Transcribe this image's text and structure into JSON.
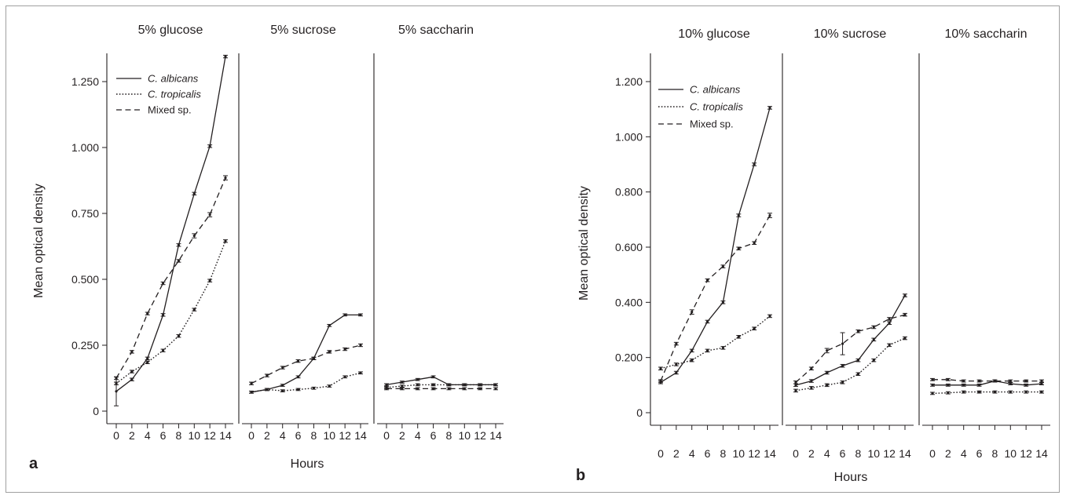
{
  "chart_data": [
    {
      "panel": "a",
      "type": "line",
      "ylabel": "Mean optical density",
      "xlabel": "Hours",
      "ylim": [
        0,
        1.35
      ],
      "yticks": [
        0,
        0.25,
        0.5,
        0.75,
        1.0,
        1.25
      ],
      "ytick_labels": [
        "0",
        "0.250",
        "0.500",
        "0.750",
        "1.000",
        "1.250"
      ],
      "x": [
        0,
        2,
        4,
        6,
        8,
        10,
        12,
        14
      ],
      "xtick_labels": [
        "0",
        "2",
        "4",
        "6",
        "8",
        "10",
        "12",
        "14"
      ],
      "legend": [
        {
          "name": "C. albicans",
          "style": "solid"
        },
        {
          "name": "C. tropicalis",
          "style": "dotted"
        },
        {
          "name": "Mixed sp.",
          "style": "dashed"
        }
      ],
      "subpanels": [
        {
          "title": "5% glucose",
          "series": [
            {
              "name": "C. albicans",
              "values": [
                0.075,
                0.12,
                0.2,
                0.365,
                0.63,
                0.825,
                1.005,
                1.345
              ],
              "errors": [
                0.055,
                0.005,
                0.005,
                0.005,
                0.005,
                0.005,
                0.005,
                0.005
              ]
            },
            {
              "name": "C. tropicalis",
              "values": [
                0.105,
                0.15,
                0.185,
                0.23,
                0.285,
                0.385,
                0.495,
                0.645
              ],
              "errors": [
                0.005,
                0.005,
                0.005,
                0.005,
                0.005,
                0.005,
                0.005,
                0.005
              ]
            },
            {
              "name": "Mixed sp.",
              "values": [
                0.125,
                0.225,
                0.37,
                0.485,
                0.57,
                0.665,
                0.745,
                0.885
              ],
              "errors": [
                0.005,
                0.005,
                0.005,
                0.005,
                0.005,
                0.008,
                0.008,
                0.008
              ]
            }
          ]
        },
        {
          "title": "5% sucrose",
          "series": [
            {
              "name": "C. albicans",
              "values": [
                0.072,
                0.082,
                0.098,
                0.13,
                0.2,
                0.325,
                0.365,
                0.365
              ],
              "errors": [
                0.004,
                0.004,
                0.004,
                0.004,
                0.004,
                0.004,
                0.004,
                0.004
              ]
            },
            {
              "name": "C. tropicalis",
              "values": [
                0.072,
                0.082,
                0.077,
                0.082,
                0.087,
                0.095,
                0.13,
                0.145
              ],
              "errors": [
                0.004,
                0.004,
                0.004,
                0.004,
                0.004,
                0.004,
                0.004,
                0.004
              ]
            },
            {
              "name": "Mixed sp.",
              "values": [
                0.105,
                0.135,
                0.165,
                0.19,
                0.2,
                0.225,
                0.235,
                0.25
              ],
              "errors": [
                0.005,
                0.005,
                0.005,
                0.005,
                0.005,
                0.005,
                0.005,
                0.005
              ]
            }
          ]
        },
        {
          "title": "5% saccharin",
          "series": [
            {
              "name": "C. albicans",
              "values": [
                0.1,
                0.11,
                0.12,
                0.13,
                0.1,
                0.1,
                0.1,
                0.1
              ],
              "errors": [
                0.004,
                0.004,
                0.004,
                0.004,
                0.004,
                0.004,
                0.004,
                0.004
              ]
            },
            {
              "name": "C. tropicalis",
              "values": [
                0.09,
                0.095,
                0.1,
                0.1,
                0.1,
                0.1,
                0.1,
                0.1
              ],
              "errors": [
                0.004,
                0.004,
                0.004,
                0.004,
                0.004,
                0.004,
                0.004,
                0.004
              ]
            },
            {
              "name": "Mixed sp.",
              "values": [
                0.085,
                0.085,
                0.085,
                0.085,
                0.085,
                0.085,
                0.085,
                0.085
              ],
              "errors": [
                0.004,
                0.004,
                0.004,
                0.004,
                0.004,
                0.004,
                0.004,
                0.004
              ]
            }
          ]
        }
      ]
    },
    {
      "panel": "b",
      "type": "line",
      "ylabel": "Mean optical density",
      "xlabel": "Hours",
      "ylim": [
        0,
        1.2
      ],
      "yticks": [
        0,
        0.2,
        0.4,
        0.6,
        0.8,
        1.0,
        1.2
      ],
      "ytick_labels": [
        "0",
        "0.200",
        "0.400",
        "0.600",
        "0.800",
        "1.000",
        "1.200"
      ],
      "x": [
        0,
        2,
        4,
        6,
        8,
        10,
        12,
        14
      ],
      "xtick_labels": [
        "0",
        "2",
        "4",
        "6",
        "8",
        "10",
        "12",
        "14"
      ],
      "legend": [
        {
          "name": "C. albicans",
          "style": "solid"
        },
        {
          "name": "C. tropicalis",
          "style": "dotted"
        },
        {
          "name": "Mixed sp.",
          "style": "dashed"
        }
      ],
      "subpanels": [
        {
          "title": "10% glucose",
          "series": [
            {
              "name": "C. albicans",
              "values": [
                0.11,
                0.145,
                0.225,
                0.33,
                0.4,
                0.715,
                0.9,
                1.105
              ],
              "errors": [
                0.005,
                0.005,
                0.005,
                0.005,
                0.005,
                0.005,
                0.005,
                0.005
              ]
            },
            {
              "name": "C. tropicalis",
              "values": [
                0.16,
                0.175,
                0.19,
                0.225,
                0.235,
                0.275,
                0.305,
                0.35
              ],
              "errors": [
                0.005,
                0.005,
                0.005,
                0.005,
                0.005,
                0.005,
                0.005,
                0.005
              ]
            },
            {
              "name": "Mixed sp.",
              "values": [
                0.115,
                0.25,
                0.365,
                0.48,
                0.53,
                0.595,
                0.615,
                0.715
              ],
              "errors": [
                0.005,
                0.005,
                0.008,
                0.005,
                0.005,
                0.005,
                0.005,
                0.008
              ]
            }
          ]
        },
        {
          "title": "10% sucrose",
          "series": [
            {
              "name": "C. albicans",
              "values": [
                0.1,
                0.115,
                0.145,
                0.17,
                0.19,
                0.265,
                0.325,
                0.425
              ],
              "errors": [
                0.005,
                0.005,
                0.005,
                0.005,
                0.005,
                0.005,
                0.005,
                0.005
              ]
            },
            {
              "name": "C. tropicalis",
              "values": [
                0.08,
                0.09,
                0.1,
                0.11,
                0.14,
                0.19,
                0.245,
                0.27
              ],
              "errors": [
                0.005,
                0.005,
                0.005,
                0.005,
                0.005,
                0.005,
                0.005,
                0.005
              ]
            },
            {
              "name": "Mixed sp.",
              "values": [
                0.11,
                0.16,
                0.225,
                0.25,
                0.295,
                0.31,
                0.34,
                0.355
              ],
              "errors": [
                0.005,
                0.005,
                0.008,
                0.04,
                0.005,
                0.005,
                0.005,
                0.005
              ]
            }
          ]
        },
        {
          "title": "10% saccharin",
          "series": [
            {
              "name": "C. albicans",
              "values": [
                0.1,
                0.1,
                0.1,
                0.1,
                0.115,
                0.105,
                0.1,
                0.105
              ],
              "errors": [
                0.004,
                0.004,
                0.004,
                0.004,
                0.004,
                0.004,
                0.004,
                0.004
              ]
            },
            {
              "name": "C. tropicalis",
              "values": [
                0.07,
                0.072,
                0.075,
                0.075,
                0.075,
                0.075,
                0.075,
                0.075
              ],
              "errors": [
                0.004,
                0.004,
                0.004,
                0.004,
                0.004,
                0.004,
                0.004,
                0.004
              ]
            },
            {
              "name": "Mixed sp.",
              "values": [
                0.12,
                0.12,
                0.115,
                0.115,
                0.115,
                0.115,
                0.115,
                0.115
              ],
              "errors": [
                0.004,
                0.004,
                0.004,
                0.004,
                0.004,
                0.004,
                0.004,
                0.004
              ]
            }
          ]
        }
      ]
    }
  ]
}
